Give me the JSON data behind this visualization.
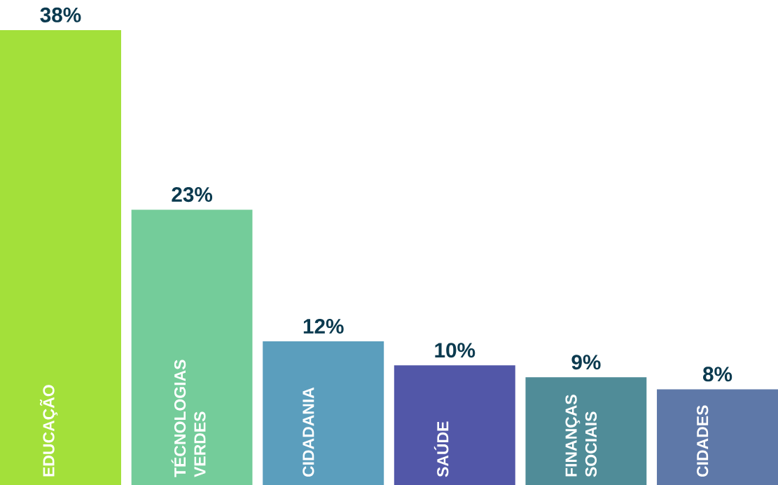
{
  "chart_data": {
    "type": "bar",
    "categories": [
      "EDUCAÇÃO",
      "TÉCNOLOGIAS VERDES",
      "CIDADANIA",
      "SAÚDE",
      "FINANÇAS SOCIAIS",
      "CIDADES"
    ],
    "values": [
      38,
      23,
      12,
      10,
      9,
      8
    ],
    "colors": [
      "#a3e03a",
      "#74cc9a",
      "#5b9ebd",
      "#5257a8",
      "#508c98",
      "#5e78a8"
    ],
    "value_labels": [
      "38%",
      "23%",
      "12%",
      "10%",
      "9%",
      "8%"
    ]
  }
}
